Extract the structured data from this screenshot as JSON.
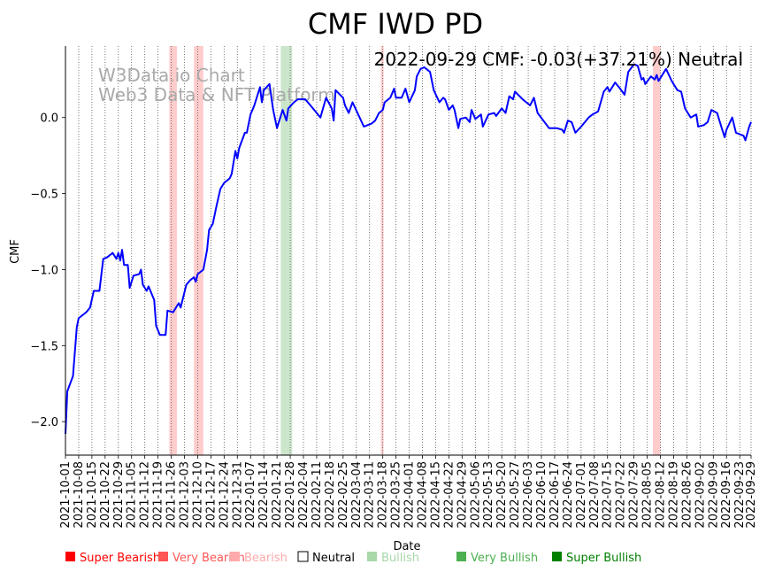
{
  "chart_data": {
    "type": "line",
    "title": "CMF IWD PD",
    "annotation": "2022-09-29 CMF: -0.03(+37.21%) Neutral",
    "watermark": [
      "W3Data.io Chart",
      "Web3 Data & NFT Platform"
    ],
    "xlabel": "Date",
    "ylabel": "CMF",
    "x_unit": "days since 2021-10-01",
    "xlim": [
      0,
      363
    ],
    "ylim": [
      -2.22,
      0.47
    ],
    "grid": "vertical dotted",
    "line_color": "#0000ff",
    "yticks": [
      {
        "value": 0.0,
        "label": "0.0"
      },
      {
        "value": -0.5,
        "label": "−0.5"
      },
      {
        "value": -1.0,
        "label": "−1.0"
      },
      {
        "value": -1.5,
        "label": "−1.5"
      },
      {
        "value": -2.0,
        "label": "−2.0"
      }
    ],
    "xtick_labels": [
      "2021-10-01",
      "2021-10-08",
      "2021-10-15",
      "2021-10-22",
      "2021-10-29",
      "2021-11-05",
      "2021-11-12",
      "2021-11-19",
      "2021-11-26",
      "2021-12-03",
      "2021-12-10",
      "2021-12-17",
      "2021-12-24",
      "2021-12-31",
      "2022-01-07",
      "2022-01-14",
      "2022-01-21",
      "2022-01-28",
      "2022-02-04",
      "2022-02-11",
      "2022-02-18",
      "2022-02-25",
      "2022-03-04",
      "2022-03-11",
      "2022-03-18",
      "2022-03-25",
      "2022-04-01",
      "2022-04-08",
      "2022-04-15",
      "2022-04-22",
      "2022-04-29",
      "2022-05-06",
      "2022-05-13",
      "2022-05-20",
      "2022-05-27",
      "2022-06-03",
      "2022-06-10",
      "2022-06-17",
      "2022-06-24",
      "2022-07-01",
      "2022-07-08",
      "2022-07-15",
      "2022-07-22",
      "2022-07-29",
      "2022-08-05",
      "2022-08-12",
      "2022-08-19",
      "2022-08-26",
      "2022-09-02",
      "2022-09-09",
      "2022-09-16",
      "2022-09-23",
      "2022-09-29"
    ],
    "xtick_days": [
      0,
      7,
      14,
      21,
      28,
      35,
      42,
      49,
      56,
      63,
      70,
      77,
      84,
      91,
      98,
      105,
      112,
      119,
      126,
      133,
      140,
      147,
      154,
      161,
      168,
      175,
      182,
      189,
      196,
      203,
      210,
      217,
      224,
      231,
      238,
      245,
      252,
      259,
      266,
      273,
      280,
      287,
      294,
      301,
      308,
      315,
      322,
      329,
      336,
      343,
      350,
      357,
      363
    ],
    "bands": [
      {
        "start": 55,
        "end": 59,
        "signal": "Bearish"
      },
      {
        "start": 68,
        "end": 73,
        "signal": "Bearish"
      },
      {
        "start": 114,
        "end": 120,
        "signal": "Bullish"
      },
      {
        "start": 167,
        "end": 168,
        "signal": "Bearish"
      },
      {
        "start": 311,
        "end": 315,
        "signal": "Bearish"
      }
    ],
    "series": [
      {
        "name": "CMF",
        "points": [
          [
            0,
            -2.08
          ],
          [
            1,
            -1.8
          ],
          [
            4,
            -1.7
          ],
          [
            6,
            -1.38
          ],
          [
            7,
            -1.32
          ],
          [
            11,
            -1.28
          ],
          [
            13,
            -1.25
          ],
          [
            15,
            -1.14
          ],
          [
            18,
            -1.14
          ],
          [
            20,
            -0.93
          ],
          [
            22,
            -0.92
          ],
          [
            25,
            -0.89
          ],
          [
            27,
            -0.93
          ],
          [
            28,
            -0.89
          ],
          [
            29,
            -0.94
          ],
          [
            30,
            -0.87
          ],
          [
            31,
            -0.97
          ],
          [
            33,
            -0.97
          ],
          [
            34,
            -1.12
          ],
          [
            36,
            -1.04
          ],
          [
            39,
            -1.03
          ],
          [
            40,
            -1.0
          ],
          [
            41,
            -1.1
          ],
          [
            43,
            -1.14
          ],
          [
            44,
            -1.11
          ],
          [
            47,
            -1.2
          ],
          [
            48,
            -1.37
          ],
          [
            50,
            -1.43
          ],
          [
            53,
            -1.43
          ],
          [
            54,
            -1.27
          ],
          [
            57,
            -1.28
          ],
          [
            60,
            -1.22
          ],
          [
            61,
            -1.25
          ],
          [
            64,
            -1.1
          ],
          [
            66,
            -1.07
          ],
          [
            68,
            -1.05
          ],
          [
            69,
            -1.08
          ],
          [
            70,
            -1.03
          ],
          [
            73,
            -1.0
          ],
          [
            75,
            -0.87
          ],
          [
            76,
            -0.74
          ],
          [
            78,
            -0.7
          ],
          [
            80,
            -0.58
          ],
          [
            82,
            -0.47
          ],
          [
            84,
            -0.43
          ],
          [
            87,
            -0.4
          ],
          [
            88,
            -0.37
          ],
          [
            90,
            -0.22
          ],
          [
            91,
            -0.27
          ],
          [
            92,
            -0.2
          ],
          [
            95,
            -0.1
          ],
          [
            96,
            -0.1
          ],
          [
            98,
            0.02
          ],
          [
            100,
            0.08
          ],
          [
            103,
            0.2
          ],
          [
            104,
            0.1
          ],
          [
            105,
            0.18
          ],
          [
            108,
            0.22
          ],
          [
            110,
            0.05
          ],
          [
            112,
            -0.07
          ],
          [
            115,
            0.05
          ],
          [
            117,
            -0.02
          ],
          [
            118,
            0.06
          ],
          [
            121,
            0.1
          ],
          [
            123,
            0.12
          ],
          [
            127,
            0.12
          ],
          [
            131,
            0.06
          ],
          [
            135,
            0.0
          ],
          [
            138,
            0.13
          ],
          [
            141,
            0.06
          ],
          [
            142,
            -0.02
          ],
          [
            143,
            0.18
          ],
          [
            147,
            0.13
          ],
          [
            148,
            0.08
          ],
          [
            150,
            0.03
          ],
          [
            152,
            0.1
          ],
          [
            155,
            0.02
          ],
          [
            158,
            -0.06
          ],
          [
            162,
            -0.04
          ],
          [
            164,
            -0.02
          ],
          [
            166,
            0.03
          ],
          [
            168,
            0.05
          ],
          [
            169,
            0.1
          ],
          [
            172,
            0.13
          ],
          [
            174,
            0.19
          ],
          [
            175,
            0.13
          ],
          [
            178,
            0.13
          ],
          [
            180,
            0.19
          ],
          [
            182,
            0.1
          ],
          [
            185,
            0.18
          ],
          [
            186,
            0.27
          ],
          [
            188,
            0.32
          ],
          [
            190,
            0.33
          ],
          [
            193,
            0.3
          ],
          [
            195,
            0.18
          ],
          [
            198,
            0.1
          ],
          [
            200,
            0.13
          ],
          [
            201,
            0.12
          ],
          [
            203,
            0.05
          ],
          [
            205,
            0.08
          ],
          [
            206,
            0.05
          ],
          [
            208,
            -0.07
          ],
          [
            209,
            -0.01
          ],
          [
            212,
            0.0
          ],
          [
            214,
            -0.03
          ],
          [
            215,
            0.05
          ],
          [
            217,
            -0.01
          ],
          [
            220,
            0.02
          ],
          [
            221,
            -0.06
          ],
          [
            224,
            0.02
          ],
          [
            227,
            0.03
          ],
          [
            228,
            0.01
          ],
          [
            231,
            0.06
          ],
          [
            233,
            0.03
          ],
          [
            235,
            0.14
          ],
          [
            237,
            0.12
          ],
          [
            238,
            0.17
          ],
          [
            242,
            0.12
          ],
          [
            244,
            0.1
          ],
          [
            246,
            0.08
          ],
          [
            248,
            0.13
          ],
          [
            250,
            0.03
          ],
          [
            253,
            -0.02
          ],
          [
            256,
            -0.07
          ],
          [
            260,
            -0.07
          ],
          [
            263,
            -0.08
          ],
          [
            264,
            -0.1
          ],
          [
            266,
            -0.02
          ],
          [
            268,
            -0.03
          ],
          [
            270,
            -0.1
          ],
          [
            273,
            -0.06
          ],
          [
            277,
            0.0
          ],
          [
            279,
            0.02
          ],
          [
            282,
            0.04
          ],
          [
            285,
            0.17
          ],
          [
            287,
            0.2
          ],
          [
            288,
            0.17
          ],
          [
            291,
            0.23
          ],
          [
            293,
            0.2
          ],
          [
            296,
            0.15
          ],
          [
            298,
            0.3
          ],
          [
            301,
            0.35
          ],
          [
            303,
            0.34
          ],
          [
            305,
            0.25
          ],
          [
            306,
            0.26
          ],
          [
            307,
            0.22
          ],
          [
            310,
            0.27
          ],
          [
            312,
            0.25
          ],
          [
            313,
            0.28
          ],
          [
            314,
            0.24
          ],
          [
            317,
            0.3
          ],
          [
            318,
            0.32
          ],
          [
            321,
            0.24
          ],
          [
            324,
            0.18
          ],
          [
            326,
            0.17
          ],
          [
            328,
            0.06
          ],
          [
            331,
            0.0
          ],
          [
            334,
            0.02
          ],
          [
            335,
            -0.06
          ],
          [
            338,
            -0.05
          ],
          [
            340,
            -0.03
          ],
          [
            342,
            0.05
          ],
          [
            345,
            0.03
          ],
          [
            347,
            -0.05
          ],
          [
            349,
            -0.13
          ],
          [
            350,
            -0.08
          ],
          [
            353,
            0.0
          ],
          [
            355,
            -0.1
          ],
          [
            359,
            -0.12
          ],
          [
            360,
            -0.15
          ],
          [
            362,
            -0.06
          ],
          [
            363,
            -0.03
          ]
        ]
      }
    ],
    "legend": {
      "placement": "bottom",
      "items": [
        {
          "label": "Super Bearish",
          "color": "#ff0000",
          "text_color": "#ff0000",
          "hollow": false
        },
        {
          "label": "Very Bearish",
          "color": "#ff5555",
          "text_color": "#ff5555",
          "hollow": false
        },
        {
          "label": "Bearish",
          "color": "#ffaaaa",
          "text_color": "#ffaaaa",
          "hollow": false
        },
        {
          "label": "Neutral",
          "color": "#000000",
          "text_color": "#000000",
          "hollow": true
        },
        {
          "label": "Bullish",
          "color": "#a8d8a8",
          "text_color": "#a8d8a8",
          "hollow": false
        },
        {
          "label": "Very Bullish",
          "color": "#4caf50",
          "text_color": "#4caf50",
          "hollow": false
        },
        {
          "label": "Super Bullish",
          "color": "#008000",
          "text_color": "#008000",
          "hollow": false
        }
      ]
    },
    "band_colors": {
      "Bearish": "#ffcccc",
      "Bullish": "#cce6cc"
    }
  }
}
